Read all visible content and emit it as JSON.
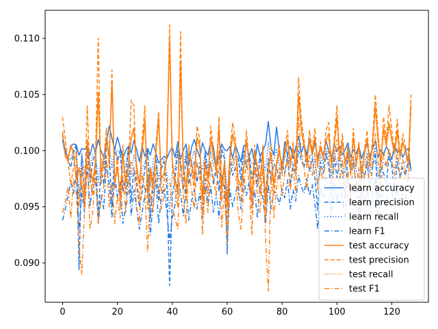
{
  "chart_data": {
    "type": "line",
    "title": "",
    "xlabel": "",
    "ylabel": "",
    "xlim": [
      -6.35,
      133.35
    ],
    "ylim": [
      0.0865,
      0.1125
    ],
    "xticks": [
      0,
      20,
      40,
      60,
      80,
      100,
      120
    ],
    "yticks": [
      0.09,
      0.095,
      0.1,
      0.105,
      0.11
    ],
    "xtick_labels": [
      "0",
      "20",
      "40",
      "60",
      "80",
      "100",
      "120"
    ],
    "ytick_labels": [
      "0.090",
      "0.095",
      "0.100",
      "0.105",
      "0.110"
    ],
    "grid": false,
    "legend_position": "lower-right",
    "n_points": 128,
    "series": [
      {
        "name": "learn accuracy",
        "color": "#1f77e8",
        "dash": "solid",
        "values": [
          0.1014,
          0.1,
          0.0993,
          0.1004,
          0.1006,
          0.1005,
          0.0996,
          0.1002,
          0.1001,
          0.1004,
          0.0996,
          0.1006,
          0.0998,
          0.101,
          0.1,
          0.0994,
          0.1008,
          0.1022,
          0.1011,
          0.1001,
          0.1012,
          0.1003,
          0.0993,
          0.1,
          0.1004,
          0.0998,
          0.1009,
          0.1001,
          0.099,
          0.1004,
          0.0995,
          0.1002,
          0.0996,
          0.1006,
          0.0998,
          0.0989,
          0.0992,
          0.0995,
          0.0993,
          0.0999,
          0.1003,
          0.0994,
          0.1008,
          0.0992,
          0.1,
          0.1006,
          0.0987,
          0.1003,
          0.101,
          0.1001,
          0.0994,
          0.1007,
          0.1,
          0.0996,
          0.1009,
          0.1003,
          0.0985,
          0.0997,
          0.1006,
          0.1001,
          0.1,
          0.1004,
          0.0993,
          0.1005,
          0.0998,
          0.099,
          0.1004,
          0.1006,
          0.0995,
          0.1002,
          0.0988,
          0.1006,
          0.0995,
          0.1,
          0.1006,
          0.1026,
          0.1003,
          0.0996,
          0.1021,
          0.1,
          0.0985,
          0.1008,
          0.0996,
          0.1004,
          0.0993,
          0.1003,
          0.1013,
          0.0998,
          0.1006,
          0.0996,
          0.1011,
          0.0997,
          0.1007,
          0.0994,
          0.1003,
          0.0996,
          0.1009,
          0.1,
          0.0993,
          0.1006,
          0.0999,
          0.1004,
          0.0996,
          0.1001,
          0.1007,
          0.0994,
          0.1001,
          0.0997,
          0.1004,
          0.0993,
          0.1,
          0.1006,
          0.0995,
          0.1002,
          0.1009,
          0.0994,
          0.1001,
          0.0996,
          0.1004,
          0.0999,
          0.0992,
          0.1005,
          0.0998,
          0.1001,
          0.0994,
          0.1,
          0.1002,
          0.0982
        ]
      },
      {
        "name": "learn precision",
        "color": "#1f77e8",
        "dash": "dashed",
        "values": [
          0.101,
          0.0996,
          0.0992,
          0.0985,
          0.0998,
          0.1006,
          0.0894,
          0.0995,
          0.096,
          0.1003,
          0.0972,
          0.099,
          0.0998,
          0.094,
          0.0985,
          0.097,
          0.1006,
          0.0997,
          0.095,
          0.1003,
          0.099,
          0.1,
          0.0964,
          0.0975,
          0.1003,
          0.0955,
          0.0985,
          0.097,
          0.095,
          0.0963,
          0.0985,
          0.1,
          0.094,
          0.0978,
          0.0996,
          0.0955,
          0.0984,
          0.099,
          0.0968,
          0.088,
          0.096,
          0.0975,
          0.1,
          0.0986,
          0.0965,
          0.0995,
          0.097,
          0.098,
          0.099,
          0.0972,
          0.0986,
          0.096,
          0.0998,
          0.0975,
          0.099,
          0.097,
          0.0986,
          0.0964,
          0.1,
          0.0993,
          0.0908,
          0.099,
          0.0978,
          0.0985,
          0.0993,
          0.0974,
          0.1,
          0.0985,
          0.0997,
          0.0975,
          0.099,
          0.0968,
          0.0994,
          0.0982,
          0.096,
          0.0993,
          0.0972,
          0.0988,
          0.0985,
          0.0975,
          0.099,
          0.098,
          0.0996,
          0.097,
          0.0988,
          0.0978,
          0.1,
          0.0992,
          0.0985,
          0.0997,
          0.0982,
          0.0993,
          0.0975,
          0.0947,
          0.099,
          0.098,
          0.0998,
          0.0986,
          0.096,
          0.0995,
          0.0976,
          0.0992,
          0.098,
          0.0958,
          0.0996,
          0.0982,
          0.099,
          0.097,
          0.0945,
          0.0986,
          0.0975,
          0.099,
          0.0965,
          0.0985,
          0.0998,
          0.0953,
          0.0986,
          0.098,
          0.097,
          0.0995,
          0.0986,
          0.0964,
          0.099,
          0.0976,
          0.0985,
          0.0978,
          0.0992,
          0.0984
        ]
      },
      {
        "name": "learn recall",
        "color": "#1f77e8",
        "dash": "dotted",
        "values": [
          0.1008,
          0.0998,
          0.0993,
          0.0992,
          0.1001,
          0.1003,
          0.096,
          0.0998,
          0.098,
          0.1002,
          0.0985,
          0.0996,
          0.0998,
          0.0972,
          0.0993,
          0.0984,
          0.1006,
          0.1008,
          0.0984,
          0.1002,
          0.0999,
          0.1001,
          0.098,
          0.0987,
          0.1003,
          0.0977,
          0.0996,
          0.0987,
          0.0972,
          0.0985,
          0.0989,
          0.1001,
          0.0968,
          0.0992,
          0.0997,
          0.0974,
          0.0988,
          0.0992,
          0.098,
          0.0945,
          0.0982,
          0.0984,
          0.1004,
          0.0988,
          0.0983,
          0.1,
          0.0979,
          0.0991,
          0.1,
          0.0986,
          0.099,
          0.0983,
          0.0999,
          0.0985,
          0.0999,
          0.0986,
          0.0985,
          0.098,
          0.1003,
          0.0997,
          0.096,
          0.0997,
          0.0985,
          0.0995,
          0.0995,
          0.0982,
          0.1002,
          0.0995,
          0.0996,
          0.0988,
          0.0989,
          0.0987,
          0.0994,
          0.0991,
          0.0983,
          0.1008,
          0.0988,
          0.0992,
          0.1002,
          0.0987,
          0.0988,
          0.0994,
          0.0996,
          0.0987,
          0.099,
          0.099,
          0.1006,
          0.0995,
          0.0995,
          0.0996,
          0.0996,
          0.0995,
          0.099,
          0.097,
          0.0996,
          0.0988,
          0.1003,
          0.0993,
          0.0977,
          0.1,
          0.0987,
          0.0998,
          0.0988,
          0.098,
          0.1002,
          0.0988,
          0.0995,
          0.0983,
          0.0975,
          0.099,
          0.0987,
          0.0998,
          0.098,
          0.0993,
          0.1003,
          0.0974,
          0.0993,
          0.0988,
          0.0987,
          0.0997,
          0.0989,
          0.0984,
          0.0994,
          0.0988,
          0.0989,
          0.0989,
          0.0997,
          0.0983
        ]
      },
      {
        "name": "learn F1",
        "color": "#1f77e8",
        "dash": "dashdot",
        "values": [
          0.0938,
          0.0948,
          0.096,
          0.0972,
          0.0962,
          0.098,
          0.093,
          0.0962,
          0.0945,
          0.0988,
          0.095,
          0.0972,
          0.0976,
          0.0935,
          0.096,
          0.0948,
          0.099,
          0.097,
          0.094,
          0.0978,
          0.0958,
          0.0972,
          0.0935,
          0.095,
          0.098,
          0.0942,
          0.0965,
          0.0948,
          0.093,
          0.0945,
          0.096,
          0.0978,
          0.0925,
          0.0955,
          0.0975,
          0.0935,
          0.0958,
          0.0966,
          0.0945,
          0.092,
          0.094,
          0.0952,
          0.0975,
          0.0962,
          0.0942,
          0.0968,
          0.0938,
          0.0955,
          0.0965,
          0.0948,
          0.0962,
          0.094,
          0.0975,
          0.0952,
          0.0968,
          0.0945,
          0.0962,
          0.094,
          0.0978,
          0.0968,
          0.092,
          0.0965,
          0.095,
          0.0962,
          0.097,
          0.0948,
          0.0975,
          0.096,
          0.0972,
          0.095,
          0.0965,
          0.094,
          0.097,
          0.0958,
          0.0935,
          0.097,
          0.0948,
          0.0964,
          0.0962,
          0.0952,
          0.0966,
          0.0958,
          0.0974,
          0.0948,
          0.0965,
          0.0955,
          0.0978,
          0.0968,
          0.0962,
          0.0975,
          0.096,
          0.097,
          0.0952,
          0.093,
          0.0968,
          0.0958,
          0.0976,
          0.0965,
          0.094,
          0.0972,
          0.0955,
          0.0968,
          0.0958,
          0.0938,
          0.0975,
          0.096,
          0.0968,
          0.0948,
          0.0928,
          0.0964,
          0.0952,
          0.0968,
          0.0944,
          0.0962,
          0.0976,
          0.0935,
          0.0964,
          0.0958,
          0.095,
          0.0972,
          0.0964,
          0.0944,
          0.0968,
          0.0955,
          0.0962,
          0.0956,
          0.097,
          0.0962
        ]
      },
      {
        "name": "test accuracy",
        "color": "#ff7f0e",
        "dash": "solid",
        "values": [
          0.1017,
          0.0995,
          0.0992,
          0.1005,
          0.0998,
          0.0975,
          0.0985,
          0.097,
          0.0952,
          0.101,
          0.0985,
          0.0973,
          0.099,
          0.1052,
          0.098,
          0.0995,
          0.101,
          0.0995,
          0.1062,
          0.0975,
          0.0985,
          0.096,
          0.0998,
          0.0972,
          0.0988,
          0.1012,
          0.102,
          0.0985,
          0.097,
          0.1,
          0.1028,
          0.0962,
          0.0985,
          0.097,
          0.0998,
          0.103,
          0.0975,
          0.098,
          0.0995,
          0.11,
          0.099,
          0.0975,
          0.0962,
          0.108,
          0.0985,
          0.0968,
          0.0998,
          0.099,
          0.0975,
          0.1012,
          0.1005,
          0.0958,
          0.099,
          0.0975,
          0.1012,
          0.0995,
          0.0985,
          0.102,
          0.0968,
          0.099,
          0.095,
          0.0995,
          0.1015,
          0.1005,
          0.0975,
          0.0968,
          0.0985,
          0.101,
          0.099,
          0.0958,
          0.1,
          0.0985,
          0.0975,
          0.1,
          0.0952,
          0.0985,
          0.0998,
          0.097,
          0.099,
          0.1,
          0.0985,
          0.0998,
          0.101,
          0.099,
          0.1002,
          0.0985,
          0.105,
          0.102,
          0.1005,
          0.099,
          0.101,
          0.0998,
          0.1012,
          0.099,
          0.1003,
          0.0995,
          0.101,
          0.1015,
          0.099,
          0.1005,
          0.103,
          0.0995,
          0.1008,
          0.099,
          0.1,
          0.0985,
          0.1012,
          0.099,
          0.1003,
          0.098,
          0.0998,
          0.101,
          0.099,
          0.1005,
          0.104,
          0.101,
          0.099,
          0.102,
          0.1005,
          0.1025,
          0.101,
          0.0998,
          0.1018,
          0.0995,
          0.1008,
          0.1,
          0.099,
          0.104
        ]
      },
      {
        "name": "test precision",
        "color": "#ff7f0e",
        "dash": "dashed",
        "values": [
          0.103,
          0.101,
          0.099,
          0.097,
          0.0985,
          0.1,
          0.095,
          0.0985,
          0.096,
          0.104,
          0.0975,
          0.096,
          0.0995,
          0.11,
          0.097,
          0.099,
          0.102,
          0.0985,
          0.1072,
          0.0965,
          0.0995,
          0.095,
          0.1005,
          0.0962,
          0.0985,
          0.1045,
          0.104,
          0.0975,
          0.0955,
          0.101,
          0.104,
          0.0948,
          0.098,
          0.0962,
          0.1005,
          0.1035,
          0.0962,
          0.0972,
          0.1,
          0.1112,
          0.0985,
          0.0965,
          0.095,
          0.1106,
          0.0975,
          0.0955,
          0.1005,
          0.0985,
          0.0965,
          0.1022,
          0.101,
          0.0942,
          0.0988,
          0.0962,
          0.1022,
          0.1,
          0.0978,
          0.103,
          0.0955,
          0.0985,
          0.0935,
          0.1,
          0.1025,
          0.101,
          0.0962,
          0.0955,
          0.098,
          0.1018,
          0.099,
          0.0945,
          0.1005,
          0.0978,
          0.0962,
          0.1005,
          0.094,
          0.098,
          0.1005,
          0.096,
          0.0985,
          0.1005,
          0.0978,
          0.1002,
          0.1018,
          0.0985,
          0.1008,
          0.0978,
          0.1065,
          0.1028,
          0.101,
          0.0985,
          0.1018,
          0.1,
          0.102,
          0.0985,
          0.1008,
          0.0992,
          0.1018,
          0.1025,
          0.0985,
          0.101,
          0.104,
          0.0992,
          0.1015,
          0.0985,
          0.1005,
          0.0978,
          0.102,
          0.0985,
          0.1008,
          0.0972,
          0.1,
          0.1018,
          0.0985,
          0.101,
          0.105,
          0.1016,
          0.0985,
          0.103,
          0.101,
          0.104,
          0.1018,
          0.1,
          0.1028,
          0.0995,
          0.1015,
          0.1004,
          0.0985,
          0.105
        ]
      },
      {
        "name": "test recall",
        "color": "#ff7f0e",
        "dash": "dotted",
        "values": [
          0.1016,
          0.0994,
          0.099,
          0.1003,
          0.0996,
          0.0972,
          0.0982,
          0.0968,
          0.0948,
          0.1006,
          0.0982,
          0.097,
          0.0988,
          0.1048,
          0.0978,
          0.0992,
          0.1006,
          0.0992,
          0.1058,
          0.0972,
          0.0982,
          0.0958,
          0.0995,
          0.097,
          0.0985,
          0.1008,
          0.1016,
          0.0982,
          0.0968,
          0.0997,
          0.1024,
          0.096,
          0.0982,
          0.0968,
          0.0995,
          0.1026,
          0.0972,
          0.0978,
          0.0992,
          0.1095,
          0.0988,
          0.0972,
          0.096,
          0.1075,
          0.0982,
          0.0965,
          0.0995,
          0.0988,
          0.0972,
          0.1008,
          0.1002,
          0.0955,
          0.0987,
          0.0972,
          0.1008,
          0.0992,
          0.0982,
          0.1016,
          0.0965,
          0.0988,
          0.0948,
          0.0992,
          0.1012,
          0.1002,
          0.0972,
          0.0965,
          0.0982,
          0.1007,
          0.0988,
          0.0955,
          0.0997,
          0.0982,
          0.0972,
          0.0997,
          0.095,
          0.0982,
          0.0995,
          0.0968,
          0.0987,
          0.0997,
          0.0982,
          0.0995,
          0.1007,
          0.0987,
          0.0999,
          0.0982,
          0.1046,
          0.1016,
          0.1002,
          0.0987,
          0.1007,
          0.0995,
          0.1009,
          0.0987,
          0.1,
          0.0992,
          0.1007,
          0.1012,
          0.0987,
          0.1002,
          0.1026,
          0.0992,
          0.1005,
          0.0987,
          0.0997,
          0.0982,
          0.1009,
          0.0987,
          0.1,
          0.0977,
          0.0995,
          0.1007,
          0.0987,
          0.1002,
          0.1036,
          0.1007,
          0.0987,
          0.1016,
          0.1002,
          0.1021,
          0.1007,
          0.0995,
          0.1015,
          0.0992,
          0.1005,
          0.0997,
          0.0987,
          0.1036
        ]
      },
      {
        "name": "test F1",
        "color": "#ff7f0e",
        "dash": "dashdot",
        "values": [
          0.0945,
          0.0955,
          0.0968,
          0.094,
          0.0975,
          0.0962,
          0.0915,
          0.089,
          0.0948,
          0.099,
          0.093,
          0.0945,
          0.0985,
          0.0935,
          0.0955,
          0.0968,
          0.0995,
          0.095,
          0.0972,
          0.0935,
          0.096,
          0.094,
          0.0978,
          0.0945,
          0.0965,
          0.099,
          0.0985,
          0.095,
          0.0935,
          0.098,
          0.0965,
          0.091,
          0.0962,
          0.0945,
          0.0985,
          0.0965,
          0.0948,
          0.096,
          0.0975,
          0.0975,
          0.095,
          0.094,
          0.093,
          0.0995,
          0.0958,
          0.0935,
          0.0985,
          0.0965,
          0.0948,
          0.099,
          0.0978,
          0.0925,
          0.0968,
          0.0945,
          0.099,
          0.0975,
          0.096,
          0.1,
          0.0932,
          0.0965,
          0.0918,
          0.0978,
          0.0995,
          0.0985,
          0.0945,
          0.093,
          0.0962,
          0.0992,
          0.097,
          0.0925,
          0.0985,
          0.096,
          0.0945,
          0.0985,
          0.092,
          0.0875,
          0.0982,
          0.094,
          0.0968,
          0.0985,
          0.096,
          0.098,
          0.0992,
          0.0965,
          0.0985,
          0.0962,
          0.103,
          0.0998,
          0.0985,
          0.0965,
          0.0995,
          0.0978,
          0.0998,
          0.0965,
          0.0985,
          0.0972,
          0.0995,
          0.1,
          0.0965,
          0.0988,
          0.101,
          0.0972,
          0.0992,
          0.0965,
          0.0982,
          0.0955,
          0.0995,
          0.0965,
          0.0985,
          0.095,
          0.0978,
          0.0995,
          0.0965,
          0.0988,
          0.1015,
          0.099,
          0.0965,
          0.1,
          0.0985,
          0.1002,
          0.099,
          0.0978,
          0.1002,
          0.0975,
          0.0992,
          0.0982,
          0.0965,
          0.1045
        ]
      }
    ]
  }
}
